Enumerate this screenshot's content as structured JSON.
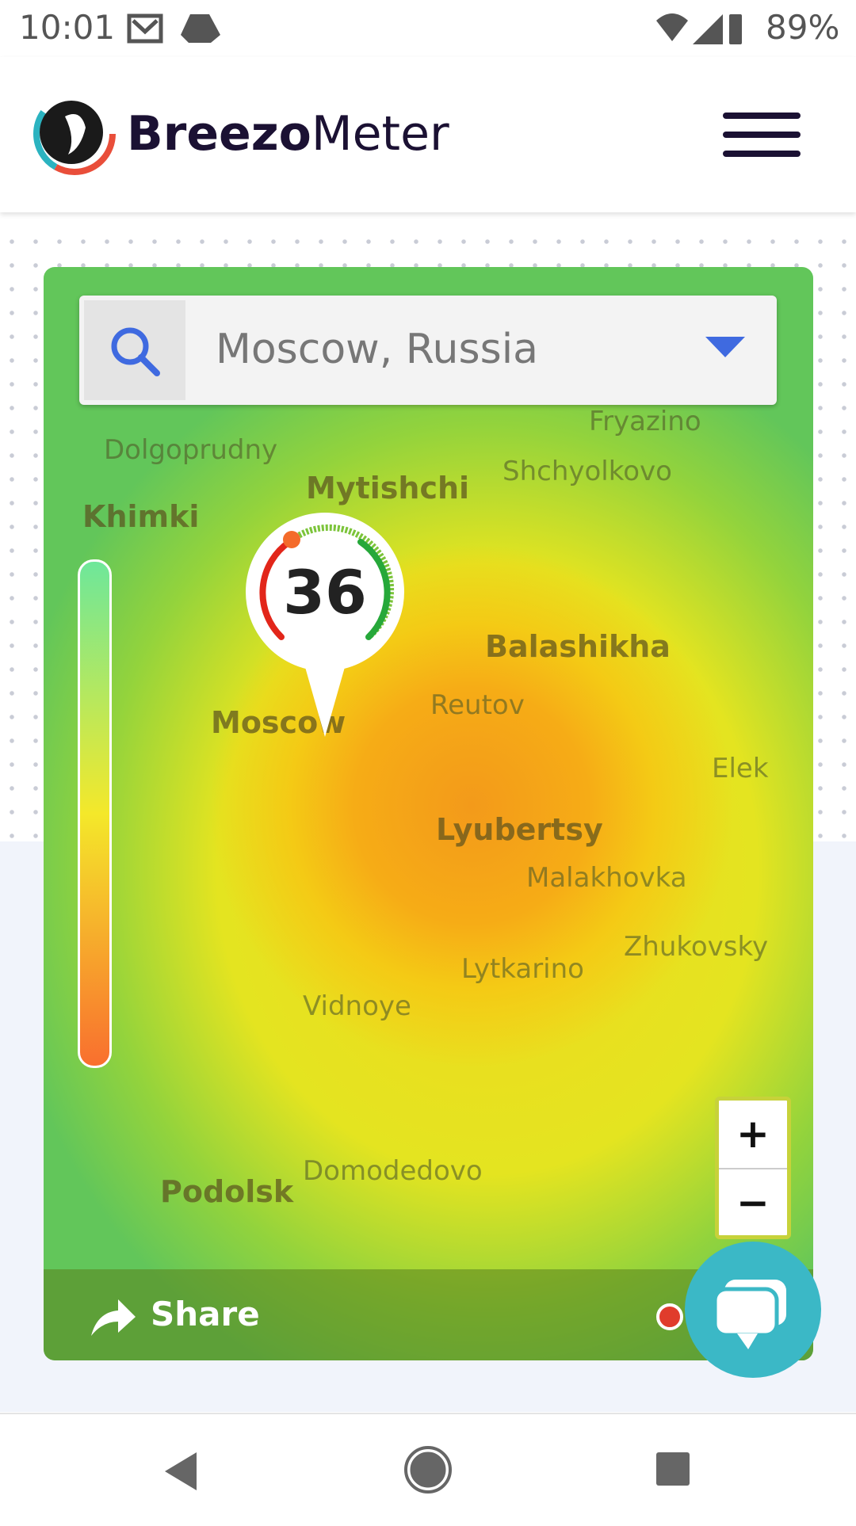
{
  "status_bar": {
    "time": "10:01",
    "battery": "89%"
  },
  "header": {
    "brand_bold": "Breezo",
    "brand_light": "Meter"
  },
  "map": {
    "search": "Moscow, Russia",
    "aqi": "36",
    "labels": [
      "Dolgoprudny",
      "Mytishchi",
      "Khimki",
      "Fryazino",
      "Shchyolkovo",
      "Balashikha",
      "Reutov",
      "Moscow",
      "Elek",
      "Lyubertsy",
      "Malakhovka",
      "Zhukovsky",
      "Lytkarino",
      "Vidnoye",
      "Domodedovo",
      "Podolsk"
    ],
    "zoom_in": "+",
    "zoom_out": "−",
    "share": "Share"
  }
}
